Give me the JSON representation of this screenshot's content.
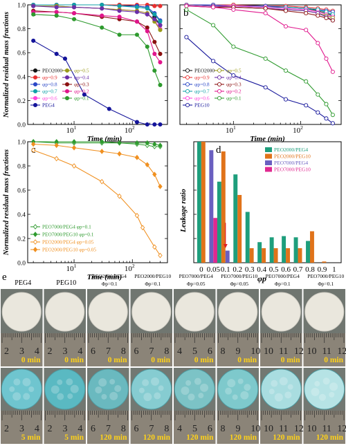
{
  "figure": {
    "panel_e": {
      "letter": "e",
      "columns": [
        {
          "label_lines": [
            "PEG4"
          ],
          "time_top": "0 min",
          "time_bottom": "5 min",
          "ruler_ticks": [
            "2",
            "3",
            "4"
          ],
          "disk_color_bottom": "#6fc5cf"
        },
        {
          "label_lines": [
            "PEG10"
          ],
          "time_top": "0 min",
          "time_bottom": "5 min",
          "ruler_ticks": [
            "2",
            "3",
            "4"
          ],
          "disk_color_bottom": "#5ab9c2"
        },
        {
          "label_lines": [
            "PEO2000/PEG4",
            "Φp=0.1"
          ],
          "time_top": "0 min",
          "time_bottom": "120 min",
          "ruler_ticks": [
            "6",
            "7",
            "8"
          ],
          "disk_color_bottom": "#6ab9bf"
        },
        {
          "label_lines": [
            "PEO2000/PEG10",
            "Φp=0.1"
          ],
          "time_top": "0 min",
          "time_bottom": "120 min",
          "ruler_ticks": [
            "6",
            "7",
            "8"
          ],
          "disk_color_bottom": "#86ccd1"
        },
        {
          "label_lines": [
            "PEO7000/PEG4",
            "Φp=0.05"
          ],
          "time_top": "0 min",
          "time_bottom": "120 min",
          "ruler_ticks": [
            "4",
            "5",
            "6"
          ],
          "disk_color_bottom": "#7cc3c6"
        },
        {
          "label_lines": [
            "PEO7000/PEG10",
            "Φp=0.05"
          ],
          "time_top": "0 min",
          "time_bottom": "120 min",
          "ruler_ticks": [
            "8",
            "9",
            "10"
          ],
          "disk_color_bottom": "#7ec9cc"
        },
        {
          "label_lines": [
            "PEO7000/PEG4",
            "Φp=0.1"
          ],
          "time_top": "0 min",
          "time_bottom": "120 min",
          "ruler_ticks": [
            "10",
            "11",
            "12"
          ],
          "disk_color_bottom": "#a9dde0"
        },
        {
          "label_lines": [
            "PEO7000/PEG10",
            "Φp=0.1"
          ],
          "time_top": "0 min",
          "time_bottom": "120 min",
          "ruler_ticks": [
            "10",
            "11",
            "12"
          ],
          "disk_color_bottom": "#b6e3e5"
        }
      ]
    }
  },
  "chart_data": [
    {
      "panel": "a",
      "type": "line",
      "title": "",
      "xlabel": "Time (min)",
      "ylabel": "Normalized residual mass fractions",
      "xscale": "log",
      "xlim": [
        1.6,
        400
      ],
      "ylim": [
        0,
        1
      ],
      "yticks": [
        "0.0",
        "0.2",
        "0.4",
        "0.6",
        "0.8",
        "1.0"
      ],
      "xticks": [
        "10^1",
        "10^2"
      ],
      "legend_position": "lower-left",
      "series": [
        {
          "name": "PEO2000",
          "color": "#111111",
          "marker": "filled-circle",
          "x": [
            2,
            5,
            10,
            30,
            60,
            120,
            180,
            240,
            300
          ],
          "y": [
            1.0,
            1.0,
            1.0,
            1.0,
            1.0,
            0.99,
            0.98,
            0.9,
            0.83
          ]
        },
        {
          "name": "φp=0.9",
          "color": "#e83030",
          "marker": "filled-circle",
          "x": [
            2,
            5,
            10,
            30,
            60,
            120,
            180,
            240,
            300
          ],
          "y": [
            1.0,
            1.0,
            1.0,
            1.0,
            1.0,
            1.0,
            1.0,
            0.99,
            0.99
          ]
        },
        {
          "name": "φp=0.8",
          "color": "#2b47c7",
          "marker": "filled-circle",
          "x": [
            2,
            5,
            10,
            30,
            60,
            120,
            180,
            240,
            300
          ],
          "y": [
            1.0,
            1.0,
            1.0,
            1.0,
            0.99,
            0.99,
            0.98,
            0.93,
            0.87
          ]
        },
        {
          "name": "φp=0.7",
          "color": "#10a0a8",
          "marker": "filled-circle",
          "x": [
            2,
            5,
            10,
            30,
            60,
            120,
            180,
            240,
            300
          ],
          "y": [
            1.0,
            1.0,
            1.0,
            1.0,
            0.99,
            0.98,
            0.97,
            0.92,
            0.86
          ]
        },
        {
          "name": "φp=0.6",
          "color": "#ff44dd",
          "marker": "filled-circle",
          "x": [
            2,
            5,
            10,
            30,
            60,
            120,
            180,
            240,
            300
          ],
          "y": [
            0.99,
            0.99,
            0.98,
            0.97,
            0.96,
            0.95,
            0.93,
            0.87,
            0.8
          ]
        },
        {
          "name": "φp=0.5",
          "color": "#9a9a1a",
          "marker": "filled-circle",
          "x": [
            2,
            5,
            10,
            30,
            60,
            120,
            180,
            240,
            300
          ],
          "y": [
            0.99,
            0.99,
            0.98,
            0.97,
            0.96,
            0.95,
            0.93,
            0.86,
            0.79
          ]
        },
        {
          "name": "φp=0.4",
          "color": "#6a2fa8",
          "marker": "filled-circle",
          "x": [
            2,
            5,
            10,
            30,
            60,
            120,
            180,
            240,
            300
          ],
          "y": [
            0.99,
            0.98,
            0.98,
            0.97,
            0.95,
            0.94,
            0.92,
            0.88,
            0.83
          ]
        },
        {
          "name": "φp=0.3",
          "color": "#8b1010",
          "marker": "filled-circle",
          "x": [
            2,
            5,
            10,
            30,
            60,
            120,
            180,
            240,
            300
          ],
          "y": [
            0.95,
            0.94,
            0.93,
            0.9,
            0.88,
            0.86,
            0.81,
            0.69,
            0.59
          ]
        },
        {
          "name": "φp=0.2",
          "color": "#e0168c",
          "marker": "filled-circle",
          "x": [
            2,
            5,
            10,
            30,
            60,
            120,
            180,
            240,
            300
          ],
          "y": [
            0.94,
            0.94,
            0.93,
            0.91,
            0.9,
            0.86,
            0.78,
            0.59,
            0.52
          ]
        },
        {
          "name": "φp=0.1",
          "color": "#2e9a2e",
          "marker": "filled-circle",
          "x": [
            2,
            5,
            10,
            30,
            60,
            120,
            180,
            240,
            300
          ],
          "y": [
            0.92,
            0.91,
            0.88,
            0.81,
            0.75,
            0.75,
            0.65,
            0.45,
            0.33
          ]
        },
        {
          "name": "PEG4",
          "color": "#14149a",
          "marker": "filled-circle",
          "x": [
            2,
            5,
            7,
            15,
            40,
            120,
            180,
            240,
            300
          ],
          "y": [
            0.7,
            0.59,
            0.55,
            0.25,
            0.13,
            0.02,
            0.0,
            0.0,
            0.0
          ]
        }
      ]
    },
    {
      "panel": "b",
      "type": "line",
      "title": "",
      "xlabel": "Time (min)",
      "ylabel": "",
      "xscale": "log",
      "xlim": [
        1.6,
        400
      ],
      "ylim": [
        0,
        1
      ],
      "xticks": [
        "10^1",
        "10^2"
      ],
      "legend_position": "lower-left",
      "series": [
        {
          "name": "PEO2000",
          "color": "#111111",
          "marker": "open-circle",
          "x": [
            2,
            5,
            10,
            30,
            60,
            120,
            180,
            240,
            300
          ],
          "y": [
            1.0,
            1.0,
            1.0,
            0.99,
            0.98,
            0.97,
            0.95,
            0.93,
            0.91
          ]
        },
        {
          "name": "φp=0.9",
          "color": "#e83030",
          "marker": "open-circle",
          "x": [
            2,
            5,
            10,
            30,
            60,
            120,
            180,
            240,
            300
          ],
          "y": [
            1.0,
            1.0,
            1.0,
            0.99,
            0.99,
            0.98,
            0.97,
            0.96,
            0.95
          ]
        },
        {
          "name": "φp=0.8",
          "color": "#2b47c7",
          "marker": "open-circle",
          "x": [
            2,
            5,
            10,
            30,
            60,
            120,
            180,
            240,
            300
          ],
          "y": [
            1.0,
            1.0,
            0.99,
            0.99,
            0.98,
            0.97,
            0.96,
            0.95,
            0.94
          ]
        },
        {
          "name": "φp=0.7",
          "color": "#10a0a8",
          "marker": "open-circle",
          "x": [
            2,
            5,
            10,
            30,
            60,
            120,
            180,
            240,
            300
          ],
          "y": [
            1.0,
            0.99,
            0.99,
            0.98,
            0.98,
            0.97,
            0.96,
            0.94,
            0.92
          ]
        },
        {
          "name": "φp=0.6",
          "color": "#ff44dd",
          "marker": "open-circle",
          "x": [
            2,
            5,
            10,
            30,
            60,
            120,
            180,
            240,
            300
          ],
          "y": [
            1.0,
            0.99,
            0.99,
            0.98,
            0.97,
            0.96,
            0.94,
            0.92,
            0.9
          ]
        },
        {
          "name": "φp=0.5",
          "color": "#9a9a1a",
          "marker": "open-circle",
          "x": [
            2,
            5,
            10,
            30,
            60,
            120,
            180,
            240,
            300
          ],
          "y": [
            1.0,
            0.99,
            0.98,
            0.97,
            0.96,
            0.95,
            0.93,
            0.91,
            0.89
          ]
        },
        {
          "name": "φp=0.4",
          "color": "#6a2fa8",
          "marker": "open-circle",
          "x": [
            2,
            5,
            10,
            30,
            60,
            120,
            180,
            240,
            300
          ],
          "y": [
            1.0,
            0.99,
            0.98,
            0.97,
            0.96,
            0.95,
            0.93,
            0.9,
            0.87
          ]
        },
        {
          "name": "φp=0.3",
          "color": "#8b1010",
          "marker": "open-circle",
          "x": [
            2,
            5,
            10,
            30,
            60,
            120,
            180,
            240,
            300
          ],
          "y": [
            0.99,
            0.98,
            0.98,
            0.97,
            0.95,
            0.93,
            0.91,
            0.89,
            0.87
          ]
        },
        {
          "name": "φp=0.2",
          "color": "#e0168c",
          "marker": "open-circle",
          "x": [
            2,
            5,
            10,
            30,
            60,
            120,
            180,
            240,
            300
          ],
          "y": [
            0.99,
            0.98,
            0.96,
            0.93,
            0.82,
            0.79,
            0.68,
            0.55,
            0.44
          ]
        },
        {
          "name": "φp=0.1",
          "color": "#2e9a2e",
          "marker": "open-circle",
          "x": [
            2,
            5,
            10,
            30,
            60,
            120,
            180,
            240,
            300
          ],
          "y": [
            0.96,
            0.83,
            0.65,
            0.55,
            0.45,
            0.36,
            0.25,
            0.17,
            0.08
          ]
        },
        {
          "name": "PEG10",
          "color": "#14149a",
          "marker": "open-circle",
          "x": [
            2,
            5,
            10,
            30,
            60,
            120,
            180,
            240,
            300
          ],
          "y": [
            0.73,
            0.53,
            0.41,
            0.31,
            0.21,
            0.16,
            0.1,
            0.05,
            0.01
          ]
        }
      ]
    },
    {
      "panel": "c",
      "type": "line",
      "title": "",
      "xlabel": "Time (min)",
      "ylabel": "Normalized residual mass fractions",
      "xscale": "log",
      "xlim": [
        1.6,
        400
      ],
      "ylim": [
        0,
        1
      ],
      "yticks": [
        "0.0",
        "0.2",
        "0.4",
        "0.6",
        "0.8",
        "1.0"
      ],
      "xticks": [
        "10^1",
        "10^2"
      ],
      "legend_position": "lower-left",
      "series": [
        {
          "name": "PEO7000/PEG4 φp=0.1",
          "color": "#2e9a2e",
          "marker": "open-diamond",
          "x": [
            2,
            5,
            10,
            30,
            60,
            120,
            180,
            240,
            300
          ],
          "y": [
            1.0,
            0.99,
            0.99,
            0.99,
            0.99,
            0.98,
            0.97,
            0.96,
            0.96
          ]
        },
        {
          "name": "PEO7000/PEG10 φp=0.1",
          "color": "#2e9a2e",
          "marker": "filled-diamond",
          "x": [
            2,
            5,
            10,
            30,
            60,
            120,
            180,
            240,
            300
          ],
          "y": [
            1.0,
            1.0,
            1.0,
            1.0,
            0.99,
            0.99,
            0.99,
            0.98,
            0.97
          ]
        },
        {
          "name": "PEO2000/PEG4 φp=0.05",
          "color": "#f09020",
          "marker": "open-diamond",
          "x": [
            2,
            5,
            10,
            30,
            60,
            120,
            150,
            240,
            300
          ],
          "y": [
            0.93,
            0.86,
            0.8,
            0.67,
            0.55,
            0.39,
            0.29,
            0.13,
            0.06
          ]
        },
        {
          "name": "PEO2000/PEG10 φp=0.05",
          "color": "#f09020",
          "marker": "filled-diamond",
          "x": [
            2,
            5,
            10,
            30,
            60,
            120,
            180,
            240,
            300
          ],
          "y": [
            0.98,
            0.97,
            0.95,
            0.92,
            0.9,
            0.87,
            0.81,
            0.73,
            0.63
          ]
        }
      ]
    },
    {
      "panel": "d",
      "type": "bar",
      "title": "",
      "xlabel": "φp",
      "ylabel": "Leakage ratio",
      "ylim": [
        0,
        1
      ],
      "categories": [
        "0",
        "0.05",
        "0.1",
        "0.2",
        "0.3",
        "0.4",
        "0.5",
        "0.6",
        "0.7",
        "0.8",
        "0.9",
        "1"
      ],
      "legend_position": "top-right",
      "series": [
        {
          "name": "PEO2000/PEG4",
          "color": "#1e9e7c",
          "values": [
            1.0,
            null,
            0.67,
            0.73,
            0.42,
            0.17,
            0.21,
            0.22,
            0.21,
            0.18,
            0.0,
            0.0
          ]
        },
        {
          "name": "PEO2000/PEG10",
          "color": "#e0731a",
          "values": [
            1.0,
            null,
            0.92,
            0.56,
            0.12,
            0.12,
            0.12,
            0.12,
            0.12,
            0.26,
            0.01,
            0.0
          ]
        },
        {
          "name": "PEO7000/PEG4",
          "color": "#6a5fc0",
          "values": [
            null,
            0.93,
            0.1,
            null,
            null,
            null,
            null,
            null,
            null,
            null,
            null,
            null
          ]
        },
        {
          "name": "PEO7000/PEG10",
          "color": "#e02890",
          "values": [
            null,
            0.37,
            0.0,
            null,
            null,
            null,
            null,
            null,
            null,
            null,
            null,
            null
          ]
        }
      ],
      "annotations": [
        {
          "type": "arrow",
          "category": "0.1",
          "color": "#e02020"
        }
      ]
    }
  ]
}
